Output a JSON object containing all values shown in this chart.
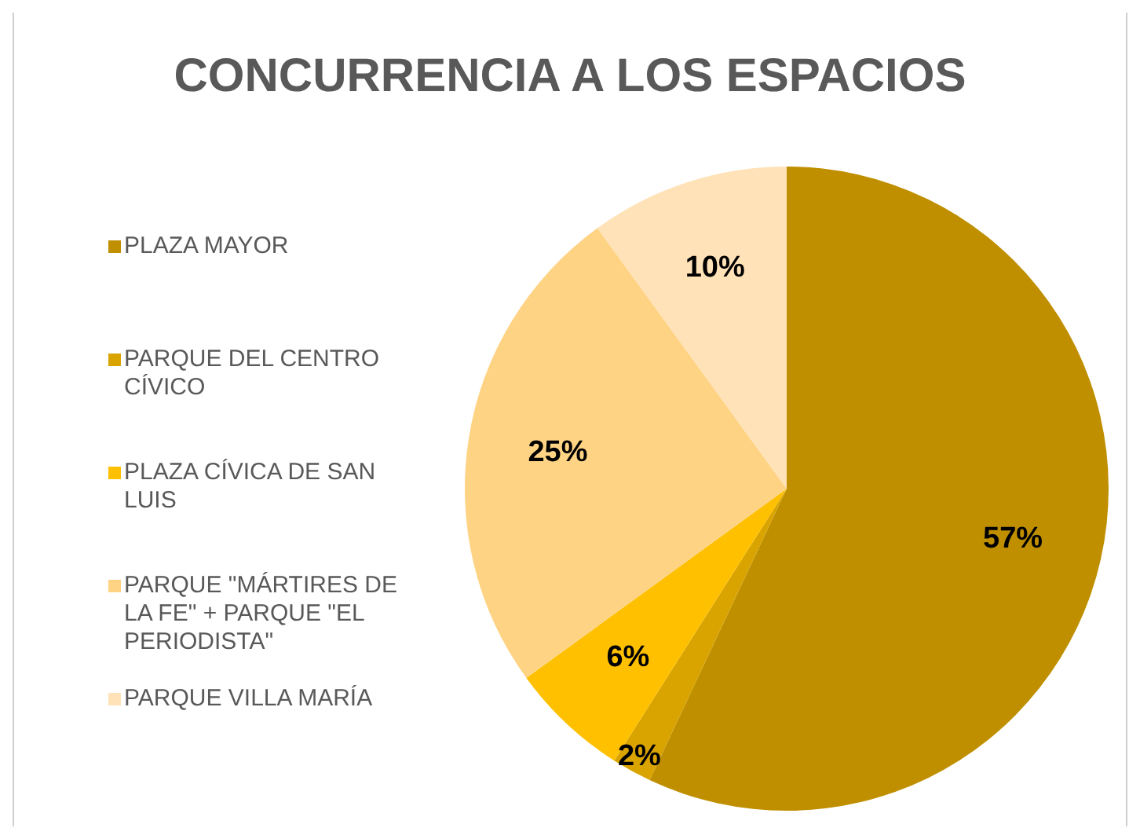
{
  "chart_data": {
    "type": "pie",
    "title": "CONCURRENCIA A LOS ESPACIOS",
    "categories": [
      "PLAZA MAYOR",
      "PARQUE DEL CENTRO CÍVICO",
      "PLAZA CÍVICA DE SAN LUIS",
      "PARQUE \"MÁRTIRES DE LA FE\" + PARQUE \"EL PERIODISTA\"",
      "PARQUE VILLA MARÍA"
    ],
    "values": [
      57,
      2,
      6,
      25,
      10
    ],
    "colors": [
      "#bf8f00",
      "#d9a300",
      "#ffc000",
      "#ffd384",
      "#ffe2b8"
    ],
    "value_labels": [
      "57%",
      "2%",
      "6%",
      "25%",
      "10%"
    ],
    "legend": "left"
  }
}
